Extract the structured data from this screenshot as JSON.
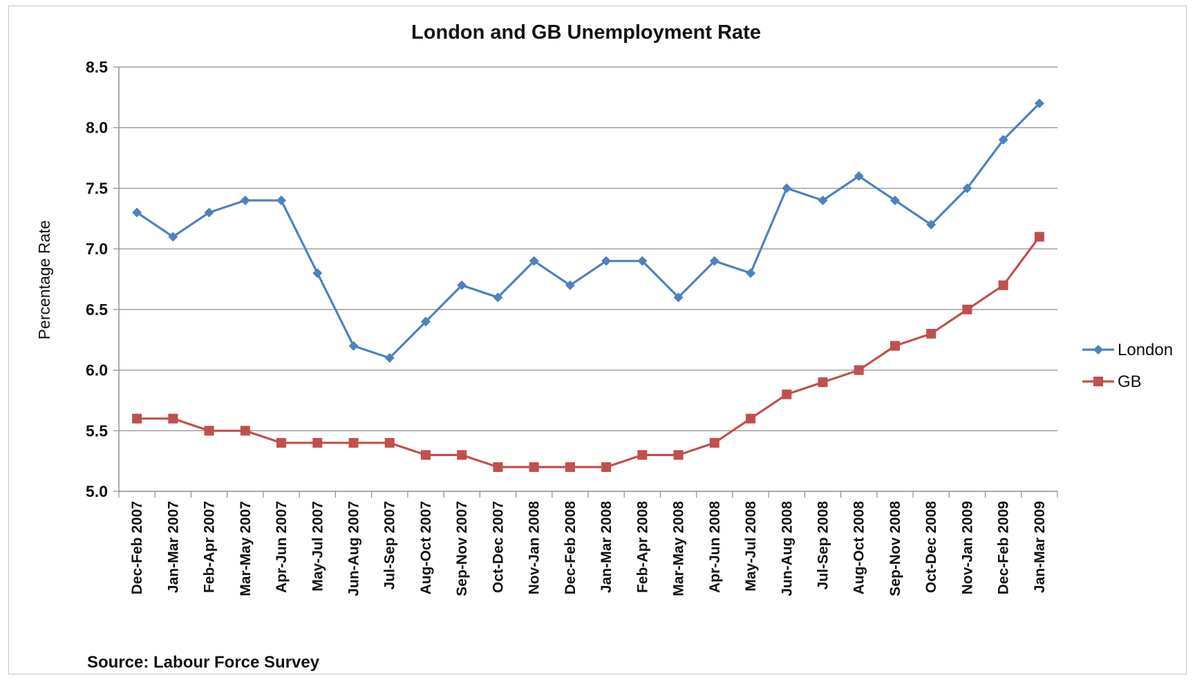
{
  "chart_data": {
    "type": "line",
    "title": "London and GB Unemployment Rate",
    "xlabel": "",
    "ylabel": "Percentage Rate",
    "ylim": [
      5.0,
      8.5
    ],
    "yticks": [
      "5.0",
      "5.5",
      "6.0",
      "6.5",
      "7.0",
      "7.5",
      "8.0",
      "8.5"
    ],
    "grid": true,
    "legend_position": "right",
    "categories": [
      "Dec-Feb 2007",
      "Jan-Mar 2007",
      "Feb-Apr 2007",
      "Mar-May 2007",
      "Apr-Jun 2007",
      "May-Jul 2007",
      "Jun-Aug 2007",
      "Jul-Sep 2007",
      "Aug-Oct 2007",
      "Sep-Nov 2007",
      "Oct-Dec 2007",
      "Nov-Jan 2008",
      "Dec-Feb 2008",
      "Jan-Mar 2008",
      "Feb-Apr 2008",
      "Mar-May 2008",
      "Apr-Jun 2008",
      "May-Jul 2008",
      "Jun-Aug 2008",
      "Jul-Sep 2008",
      "Aug-Oct 2008",
      "Sep-Nov 2008",
      "Oct-Dec 2008",
      "Nov-Jan 2009",
      "Dec-Feb 2009",
      "Jan-Mar 2009"
    ],
    "series": [
      {
        "name": "London",
        "color": "#4f81bd",
        "marker": "diamond",
        "values": [
          7.3,
          7.1,
          7.3,
          7.4,
          7.4,
          6.8,
          6.2,
          6.1,
          6.4,
          6.7,
          6.6,
          6.9,
          6.7,
          6.9,
          6.9,
          6.6,
          6.9,
          6.8,
          7.5,
          7.4,
          7.6,
          7.4,
          7.2,
          7.5,
          7.9,
          8.2
        ]
      },
      {
        "name": "GB",
        "color": "#c0504d",
        "marker": "square",
        "values": [
          5.6,
          5.6,
          5.5,
          5.5,
          5.4,
          5.4,
          5.4,
          5.4,
          5.3,
          5.3,
          5.2,
          5.2,
          5.2,
          5.2,
          5.3,
          5.3,
          5.4,
          5.6,
          5.8,
          5.9,
          6.0,
          6.2,
          6.3,
          6.5,
          6.7,
          7.1
        ]
      }
    ]
  },
  "source_note": "Source: Labour Force Survey"
}
